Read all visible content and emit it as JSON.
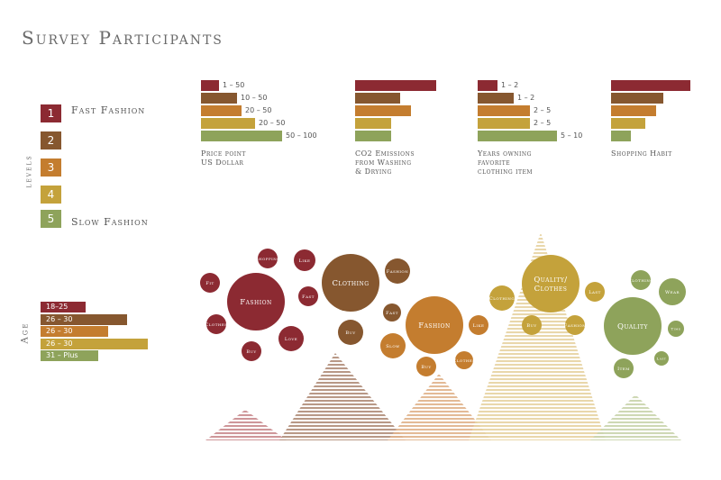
{
  "title": "Survey Participants",
  "levels_label": "levels",
  "age_label": "Age",
  "colors": {
    "l1": "#8c2a32",
    "l2": "#86572f",
    "l3": "#c47d2f",
    "l4": "#c4a23b",
    "l5": "#8ea35b"
  },
  "levels": [
    {
      "num": "1",
      "text": "Fast Fashion"
    },
    {
      "num": "2",
      "text": ""
    },
    {
      "num": "3",
      "text": ""
    },
    {
      "num": "4",
      "text": ""
    },
    {
      "num": "5",
      "text": "Slow Fashion"
    }
  ],
  "chart_data": [
    {
      "type": "bar",
      "title": "Price point\nUS Dollar",
      "categories": [
        "1",
        "2",
        "3",
        "4",
        "5"
      ],
      "values": [
        20,
        40,
        45,
        60,
        90
      ],
      "labels": [
        "1 – 50",
        "10 – 50",
        "20 – 50",
        "20 – 50",
        "50 – 100"
      ]
    },
    {
      "type": "bar",
      "title": "CO2 Emissions\nfrom Washing\n& Drying",
      "categories": [
        "1",
        "2",
        "3",
        "4",
        "5"
      ],
      "values": [
        90,
        50,
        62,
        40,
        40
      ],
      "labels": [
        "",
        "",
        "",
        "",
        ""
      ]
    },
    {
      "type": "bar",
      "title": "Years owning\nfavorite\nclothing item",
      "categories": [
        "1",
        "2",
        "3",
        "4",
        "5"
      ],
      "values": [
        22,
        40,
        58,
        58,
        88
      ],
      "labels": [
        "1 – 2",
        "1 – 2",
        "2 – 5",
        "2 – 5",
        "5 – 10"
      ]
    },
    {
      "type": "bar",
      "title": "Shopping Habit",
      "categories": [
        "1",
        "2",
        "3",
        "4",
        "5"
      ],
      "values": [
        88,
        58,
        50,
        38,
        22
      ],
      "labels": [
        "",
        "",
        "",
        "",
        ""
      ]
    },
    {
      "type": "bar",
      "title": "",
      "categories": [
        "1",
        "2",
        "3",
        "4",
        "5"
      ],
      "values": [
        50,
        96,
        75,
        119,
        64
      ],
      "labels": [
        "18–25",
        "26 – 30",
        "26 – 30",
        "26 – 30",
        "31 – Plus"
      ]
    },
    {
      "type": "scatter",
      "title": "",
      "groups": [
        {
          "level": 1,
          "center": "Fashion",
          "words": [
            "Fit",
            "Shopping",
            "Like",
            "Fast",
            "Love",
            "Buy",
            "Clothes"
          ]
        },
        {
          "level": 2,
          "center": "Clothing",
          "words": [
            "Fashion",
            "Fast",
            "Buy"
          ]
        },
        {
          "level": 3,
          "center": "Fashion",
          "words": [
            "Like",
            "Clothes",
            "Buy",
            "Slow"
          ]
        },
        {
          "level": 4,
          "center": "Quality/ Clothes",
          "words": [
            "Clothing",
            "Last",
            "Buy",
            "Fashion"
          ]
        },
        {
          "level": 5,
          "center": "Quality",
          "words": [
            "Clothing",
            "Wear",
            "Time",
            "Last",
            "Item"
          ]
        }
      ]
    }
  ]
}
